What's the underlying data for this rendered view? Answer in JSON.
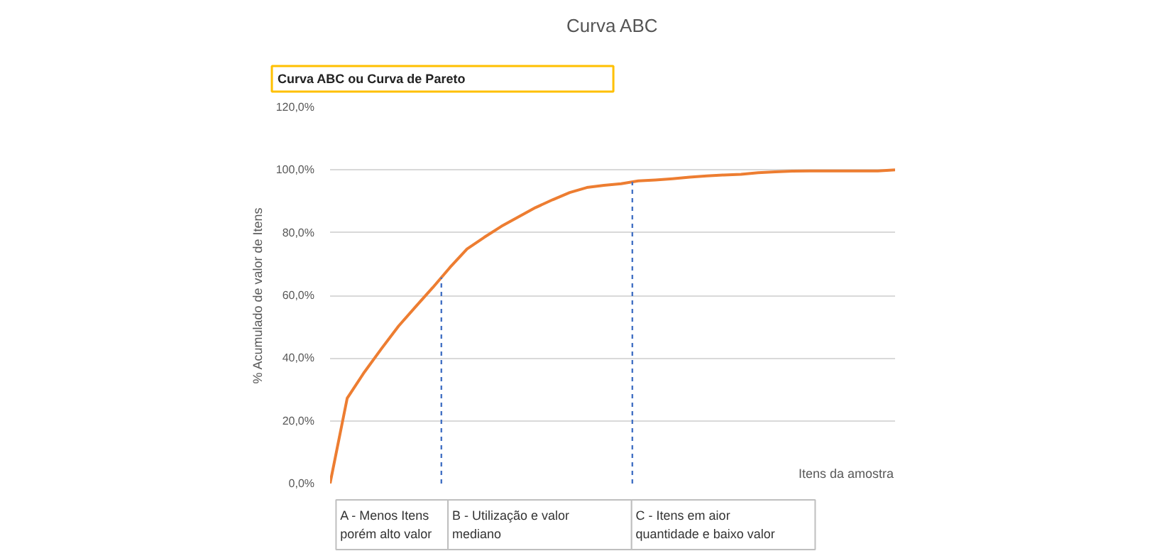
{
  "chart_data": {
    "type": "line",
    "title": "Curva ABC",
    "subtitle": "Curva ABC ou Curva de Pareto",
    "xlabel": "Itens da amostra",
    "ylabel": "% Acumulado de valor de Itens",
    "categories": [
      null,
      null,
      null,
      null,
      null,
      null,
      null,
      null,
      null,
      null,
      null,
      null,
      null,
      null,
      null,
      null,
      null,
      null,
      null,
      null,
      null,
      null,
      null,
      null,
      null,
      null,
      null,
      null,
      null,
      null,
      null,
      null,
      null,
      null
    ],
    "series": [
      {
        "color": "#ed7d31",
        "values": [
          0,
          27.2,
          35.5,
          43,
          50.2,
          56.4,
          62.5,
          68.9,
          74.8,
          78.5,
          82,
          85,
          88,
          90.5,
          92.8,
          94.4,
          95.1,
          95.6,
          96.5,
          96.8,
          97.2,
          97.7,
          98.1,
          98.4,
          98.6,
          99.1,
          99.4,
          99.6,
          99.7,
          99.7,
          99.7,
          99.7,
          99.7,
          100
        ]
      }
    ],
    "ylim": [
      0,
      120
    ],
    "yticks": [
      {
        "value": 0,
        "label": "0,0%"
      },
      {
        "value": 20,
        "label": "20,0%"
      },
      {
        "value": 40,
        "label": "40,0%"
      },
      {
        "value": 60,
        "label": "60,0%"
      },
      {
        "value": 80,
        "label": "80,0%"
      },
      {
        "value": 100,
        "label": "100,0%"
      },
      {
        "value": 120,
        "label": "120,0%"
      }
    ],
    "grid": "y",
    "tick_labels": "y",
    "marker": "none",
    "line_style": "solid",
    "annotations": [
      "A - Menos Itens\nporém alto valor",
      "B - Utilização e valor\nmediano",
      "C -  Itens em aior\nquantidade e baixo valor"
    ]
  }
}
